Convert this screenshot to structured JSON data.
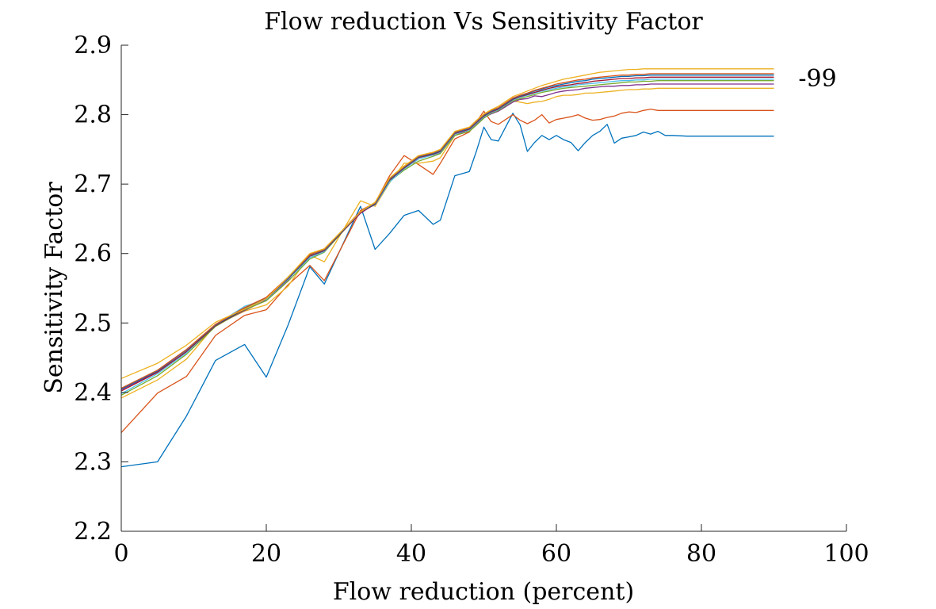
{
  "chart_data": {
    "type": "line",
    "title": "Flow reduction Vs Sensitivity Factor",
    "xlabel": "Flow reduction (percent)",
    "ylabel": "Sensitivity Factor",
    "xlim": [
      0,
      100
    ],
    "ylim": [
      2.2,
      2.9
    ],
    "xticks": [
      0,
      20,
      40,
      60,
      80,
      100
    ],
    "yticks": [
      2.2,
      2.3,
      2.4,
      2.5,
      2.6,
      2.7,
      2.8,
      2.9
    ],
    "grid": false,
    "legend": null,
    "annotation": {
      "text": "-99",
      "x": 92.5,
      "y": 2.852
    },
    "series": [
      {
        "color": "#0072BD",
        "x": [
          0,
          5,
          9,
          13,
          17,
          20,
          23,
          26,
          28,
          33,
          35,
          37,
          39,
          41,
          43,
          44,
          46,
          48,
          49,
          50,
          51,
          52,
          54,
          55,
          56,
          57,
          58,
          59,
          60,
          61,
          62,
          63,
          64,
          65,
          66,
          67,
          68,
          69,
          70,
          71,
          72,
          73,
          74,
          75,
          76,
          78,
          80,
          85,
          90
        ],
        "y": [
          2.293,
          2.3,
          2.366,
          2.446,
          2.469,
          2.422,
          2.497,
          2.581,
          2.556,
          2.668,
          2.606,
          2.629,
          2.655,
          2.662,
          2.642,
          2.648,
          2.712,
          2.718,
          2.748,
          2.782,
          2.764,
          2.762,
          2.802,
          2.785,
          2.747,
          2.76,
          2.77,
          2.764,
          2.77,
          2.764,
          2.76,
          2.748,
          2.76,
          2.77,
          2.776,
          2.786,
          2.759,
          2.766,
          2.768,
          2.77,
          2.775,
          2.772,
          2.776,
          2.77,
          2.77,
          2.769,
          2.769,
          2.769,
          2.769
        ]
      },
      {
        "color": "#D95319",
        "x": [
          0,
          5,
          9,
          13,
          17,
          20,
          23,
          26,
          28,
          33,
          35,
          37,
          39,
          41,
          43,
          44,
          46,
          48,
          49,
          50,
          51,
          52,
          54,
          55,
          56,
          57,
          58,
          59,
          60,
          61,
          62,
          63,
          64,
          65,
          66,
          67,
          68,
          69,
          70,
          71,
          72,
          73,
          74,
          75,
          76,
          78,
          80,
          85,
          90
        ],
        "y": [
          2.342,
          2.399,
          2.423,
          2.482,
          2.511,
          2.519,
          2.555,
          2.583,
          2.561,
          2.662,
          2.673,
          2.712,
          2.741,
          2.728,
          2.714,
          2.73,
          2.765,
          2.775,
          2.79,
          2.805,
          2.79,
          2.786,
          2.8,
          2.792,
          2.787,
          2.792,
          2.8,
          2.788,
          2.793,
          2.795,
          2.797,
          2.8,
          2.795,
          2.792,
          2.793,
          2.796,
          2.798,
          2.802,
          2.804,
          2.803,
          2.806,
          2.808,
          2.806,
          2.806,
          2.806,
          2.806,
          2.806,
          2.806,
          2.806
        ]
      },
      {
        "color": "#EDB120",
        "x": [
          0,
          5,
          9,
          13,
          17,
          20,
          23,
          26,
          28,
          33,
          35,
          37,
          39,
          41,
          43,
          44,
          46,
          48,
          49,
          50,
          51,
          52,
          54,
          55,
          56,
          57,
          58,
          59,
          60,
          61,
          62,
          63,
          64,
          65,
          66,
          67,
          68,
          69,
          70,
          71,
          72,
          73,
          74,
          75,
          76,
          78,
          80,
          85,
          90
        ],
        "y": [
          2.392,
          2.418,
          2.448,
          2.497,
          2.517,
          2.526,
          2.553,
          2.598,
          2.588,
          2.676,
          2.668,
          2.702,
          2.73,
          2.73,
          2.733,
          2.738,
          2.77,
          2.776,
          2.788,
          2.8,
          2.804,
          2.806,
          2.82,
          2.818,
          2.816,
          2.818,
          2.819,
          2.822,
          2.826,
          2.828,
          2.828,
          2.829,
          2.831,
          2.831,
          2.832,
          2.833,
          2.834,
          2.835,
          2.836,
          2.836,
          2.837,
          2.837,
          2.838,
          2.838,
          2.838,
          2.838,
          2.838,
          2.838,
          2.838
        ]
      },
      {
        "color": "#7E2F8E",
        "x": [
          0,
          5,
          9,
          13,
          17,
          20,
          23,
          26,
          28,
          33,
          35,
          37,
          39,
          41,
          43,
          44,
          46,
          48,
          49,
          50,
          51,
          52,
          54,
          55,
          56,
          57,
          58,
          59,
          60,
          61,
          62,
          63,
          64,
          65,
          66,
          67,
          68,
          69,
          70,
          71,
          72,
          73,
          74,
          75,
          76,
          78,
          80,
          85,
          90
        ],
        "y": [
          2.404,
          2.43,
          2.458,
          2.496,
          2.518,
          2.533,
          2.562,
          2.599,
          2.605,
          2.658,
          2.672,
          2.705,
          2.724,
          2.74,
          2.742,
          2.745,
          2.77,
          2.778,
          2.787,
          2.796,
          2.801,
          2.805,
          2.818,
          2.822,
          2.823,
          2.827,
          2.826,
          2.829,
          2.832,
          2.834,
          2.835,
          2.836,
          2.838,
          2.839,
          2.84,
          2.841,
          2.841,
          2.842,
          2.842,
          2.843,
          2.843,
          2.844,
          2.844,
          2.844,
          2.844,
          2.844,
          2.844,
          2.844,
          2.844
        ]
      },
      {
        "color": "#77AC30",
        "x": [
          0,
          5,
          9,
          13,
          17,
          20,
          23,
          26,
          28,
          33,
          35,
          37,
          39,
          41,
          43,
          44,
          46,
          48,
          49,
          50,
          51,
          52,
          54,
          55,
          56,
          57,
          58,
          59,
          60,
          61,
          62,
          63,
          64,
          65,
          66,
          67,
          68,
          69,
          70,
          71,
          72,
          73,
          74,
          75,
          76,
          78,
          80,
          85,
          90
        ],
        "y": [
          2.396,
          2.424,
          2.455,
          2.495,
          2.519,
          2.532,
          2.56,
          2.592,
          2.602,
          2.66,
          2.671,
          2.704,
          2.72,
          2.733,
          2.74,
          2.744,
          2.77,
          2.776,
          2.785,
          2.795,
          2.802,
          2.806,
          2.82,
          2.823,
          2.826,
          2.829,
          2.832,
          2.834,
          2.836,
          2.838,
          2.839,
          2.84,
          2.841,
          2.842,
          2.843,
          2.844,
          2.845,
          2.846,
          2.847,
          2.847,
          2.848,
          2.848,
          2.849,
          2.849,
          2.849,
          2.849,
          2.849,
          2.849,
          2.849
        ]
      },
      {
        "color": "#4DBEEE",
        "x": [
          0,
          5,
          9,
          13,
          17,
          20,
          23,
          26,
          28,
          33,
          35,
          37,
          39,
          41,
          43,
          44,
          46,
          48,
          49,
          50,
          51,
          52,
          54,
          55,
          56,
          57,
          58,
          59,
          60,
          61,
          62,
          63,
          64,
          65,
          66,
          67,
          68,
          69,
          70,
          71,
          72,
          73,
          74,
          75,
          76,
          78,
          80,
          85,
          90
        ],
        "y": [
          2.398,
          2.427,
          2.457,
          2.497,
          2.524,
          2.534,
          2.563,
          2.594,
          2.603,
          2.661,
          2.67,
          2.703,
          2.722,
          2.736,
          2.742,
          2.746,
          2.772,
          2.778,
          2.788,
          2.797,
          2.803,
          2.807,
          2.821,
          2.825,
          2.828,
          2.831,
          2.834,
          2.836,
          2.838,
          2.84,
          2.841,
          2.843,
          2.844,
          2.845,
          2.846,
          2.847,
          2.848,
          2.849,
          2.849,
          2.85,
          2.85,
          2.851,
          2.851,
          2.851,
          2.851,
          2.851,
          2.851,
          2.851,
          2.851
        ]
      },
      {
        "color": "#A2142F",
        "x": [
          0,
          5,
          9,
          13,
          17,
          20,
          23,
          26,
          28,
          33,
          35,
          37,
          39,
          41,
          43,
          44,
          46,
          48,
          49,
          50,
          51,
          52,
          54,
          55,
          56,
          57,
          58,
          59,
          60,
          61,
          62,
          63,
          64,
          65,
          66,
          67,
          68,
          69,
          70,
          71,
          72,
          73,
          74,
          75,
          76,
          78,
          80,
          85,
          90
        ],
        "y": [
          2.402,
          2.429,
          2.459,
          2.496,
          2.52,
          2.535,
          2.564,
          2.596,
          2.604,
          2.659,
          2.671,
          2.706,
          2.723,
          2.738,
          2.743,
          2.747,
          2.773,
          2.779,
          2.789,
          2.798,
          2.804,
          2.808,
          2.822,
          2.826,
          2.829,
          2.832,
          2.835,
          2.838,
          2.84,
          2.842,
          2.843,
          2.845,
          2.846,
          2.848,
          2.849,
          2.85,
          2.851,
          2.852,
          2.852,
          2.853,
          2.853,
          2.854,
          2.854,
          2.854,
          2.854,
          2.854,
          2.854,
          2.854,
          2.854
        ]
      },
      {
        "color": "#0072BD",
        "x": [
          0,
          5,
          9,
          13,
          17,
          20,
          23,
          26,
          28,
          33,
          35,
          37,
          39,
          41,
          43,
          44,
          46,
          48,
          49,
          50,
          51,
          52,
          54,
          55,
          56,
          57,
          58,
          59,
          60,
          61,
          62,
          63,
          64,
          65,
          66,
          67,
          68,
          69,
          70,
          71,
          72,
          73,
          74,
          75,
          76,
          78,
          80,
          85,
          90
        ],
        "y": [
          2.405,
          2.431,
          2.461,
          2.497,
          2.521,
          2.536,
          2.565,
          2.597,
          2.605,
          2.66,
          2.672,
          2.707,
          2.724,
          2.739,
          2.744,
          2.748,
          2.774,
          2.78,
          2.79,
          2.799,
          2.805,
          2.809,
          2.823,
          2.827,
          2.83,
          2.834,
          2.837,
          2.84,
          2.842,
          2.844,
          2.846,
          2.848,
          2.849,
          2.851,
          2.852,
          2.853,
          2.854,
          2.855,
          2.855,
          2.856,
          2.856,
          2.857,
          2.857,
          2.857,
          2.857,
          2.857,
          2.857,
          2.857,
          2.857
        ]
      },
      {
        "color": "#D95319",
        "x": [
          0,
          5,
          9,
          13,
          17,
          20,
          23,
          26,
          28,
          33,
          35,
          37,
          39,
          41,
          43,
          44,
          46,
          48,
          49,
          50,
          51,
          52,
          54,
          55,
          56,
          57,
          58,
          59,
          60,
          61,
          62,
          63,
          64,
          65,
          66,
          67,
          68,
          69,
          70,
          71,
          72,
          73,
          74,
          75,
          76,
          78,
          80,
          85,
          90
        ],
        "y": [
          2.406,
          2.432,
          2.462,
          2.498,
          2.522,
          2.537,
          2.566,
          2.598,
          2.606,
          2.661,
          2.673,
          2.708,
          2.725,
          2.74,
          2.745,
          2.749,
          2.775,
          2.781,
          2.791,
          2.8,
          2.806,
          2.81,
          2.824,
          2.828,
          2.831,
          2.835,
          2.838,
          2.841,
          2.844,
          2.846,
          2.848,
          2.85,
          2.851,
          2.853,
          2.854,
          2.855,
          2.856,
          2.857,
          2.857,
          2.858,
          2.858,
          2.859,
          2.859,
          2.859,
          2.859,
          2.859,
          2.859,
          2.859,
          2.859
        ]
      },
      {
        "color": "#EDB120",
        "x": [
          0,
          5,
          9,
          13,
          17,
          20,
          23,
          26,
          28,
          33,
          35,
          37,
          39,
          41,
          43,
          44,
          46,
          48,
          49,
          50,
          51,
          52,
          54,
          55,
          56,
          57,
          58,
          59,
          60,
          61,
          62,
          63,
          64,
          65,
          66,
          67,
          68,
          69,
          70,
          71,
          72,
          73,
          74,
          75,
          76,
          78,
          80,
          85,
          90
        ],
        "y": [
          2.42,
          2.442,
          2.468,
          2.501,
          2.52,
          2.535,
          2.566,
          2.6,
          2.607,
          2.66,
          2.674,
          2.709,
          2.726,
          2.741,
          2.746,
          2.75,
          2.776,
          2.782,
          2.792,
          2.801,
          2.807,
          2.812,
          2.826,
          2.83,
          2.834,
          2.838,
          2.842,
          2.845,
          2.848,
          2.851,
          2.853,
          2.855,
          2.857,
          2.859,
          2.861,
          2.862,
          2.863,
          2.864,
          2.865,
          2.865,
          2.866,
          2.866,
          2.866,
          2.866,
          2.866,
          2.866,
          2.866,
          2.866,
          2.866
        ]
      }
    ]
  }
}
